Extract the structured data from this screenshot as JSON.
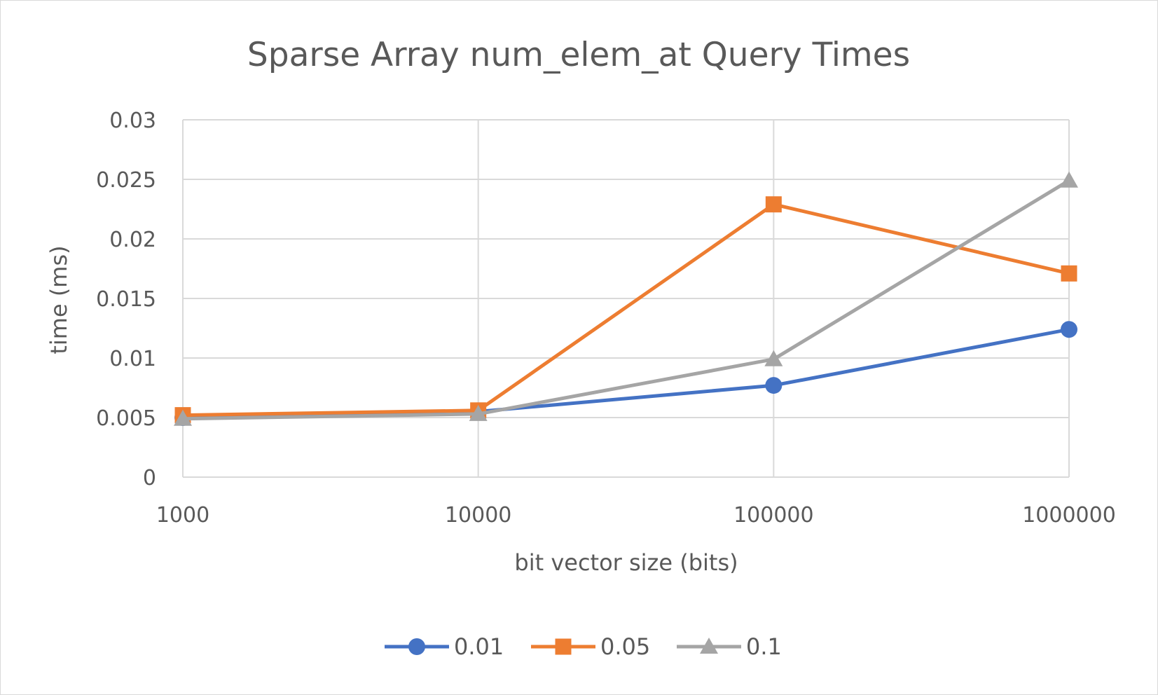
{
  "chart_data": {
    "type": "line",
    "title": "Sparse Array num_elem_at Query Times",
    "xlabel": "bit vector size (bits)",
    "ylabel": "time (ms)",
    "x_scale": "log",
    "categories": [
      "1000",
      "10000",
      "100000",
      "1000000"
    ],
    "x": [
      1000,
      10000,
      100000,
      1000000
    ],
    "ylim": [
      0,
      0.03
    ],
    "yticks": [
      0,
      0.005,
      0.01,
      0.015,
      0.02,
      0.025,
      0.03
    ],
    "ytick_labels": [
      "0",
      "0.005",
      "0.01",
      "0.015",
      "0.02",
      "0.025",
      "0.03"
    ],
    "grid": true,
    "legend_position": "bottom",
    "series": [
      {
        "name": "0.01",
        "values": [
          0.005,
          0.0055,
          0.0077,
          0.0124
        ],
        "color": "#4472c4",
        "marker": "circle"
      },
      {
        "name": "0.05",
        "values": [
          0.0052,
          0.0056,
          0.0229,
          0.0171
        ],
        "color": "#ed7d31",
        "marker": "square"
      },
      {
        "name": "0.1",
        "values": [
          0.0049,
          0.0053,
          0.0099,
          0.0249
        ],
        "color": "#a5a5a5",
        "marker": "triangle"
      }
    ]
  }
}
